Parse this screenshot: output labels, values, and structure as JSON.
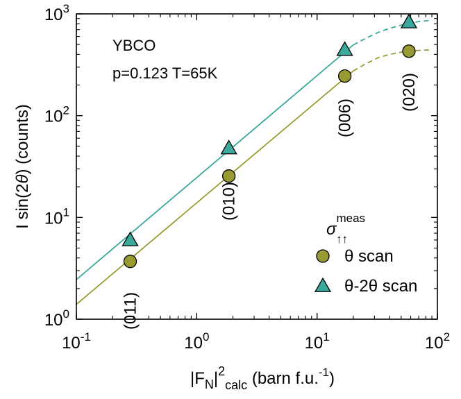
{
  "chart_data": {
    "type": "scatter",
    "title": "",
    "xlabel": {
      "base": "|F",
      "sub1": "N",
      "mid": "|",
      "sup": "2",
      "sub2": "calc",
      "tail": " (barn f.u.",
      "tailsup": "-1",
      "end": ")"
    },
    "ylabel": {
      "pre": "I sin(2",
      "theta": "θ",
      "post": ") (counts)"
    },
    "xscale": "log",
    "yscale": "log",
    "xlim": [
      0.1,
      100
    ],
    "ylim": [
      1,
      1000
    ],
    "grid": false,
    "x_ticks": [
      {
        "base": "10",
        "exp": "-1",
        "value": 0.1
      },
      {
        "base": "10",
        "exp": "0",
        "value": 1
      },
      {
        "base": "10",
        "exp": "1",
        "value": 10
      },
      {
        "base": "10",
        "exp": "2",
        "value": 100
      }
    ],
    "y_ticks": [
      {
        "base": "10",
        "exp": "0",
        "value": 1
      },
      {
        "base": "10",
        "exp": "1",
        "value": 10
      },
      {
        "base": "10",
        "exp": "2",
        "value": 100
      },
      {
        "base": "10",
        "exp": "3",
        "value": 1000
      }
    ],
    "annotations": {
      "sample": "YBCO",
      "conditions": "p=0.123 T=65K"
    },
    "legend": {
      "placement": "bottom-right",
      "title_base": "σ",
      "title_sup": "meas",
      "title_sub": "↑↑",
      "entries": [
        {
          "label": "θ scan",
          "marker": "circle",
          "color": "#9a9a33"
        },
        {
          "label": "θ-2θ scan",
          "marker": "triangle",
          "color": "#3aa89a"
        }
      ]
    },
    "reflections": [
      {
        "label": "(011)",
        "x": 0.28
      },
      {
        "label": "(010)",
        "x": 1.85
      },
      {
        "label": "(006)",
        "x": 17
      },
      {
        "label": "(020)",
        "x": 58
      }
    ],
    "series": [
      {
        "name": "θ scan",
        "marker": "circle",
        "color": "#9a9a33",
        "x": [
          0.28,
          1.85,
          17,
          58
        ],
        "y": [
          3.7,
          25.5,
          245,
          430
        ]
      },
      {
        "name": "θ-2θ scan",
        "marker": "triangle",
        "color": "#3aa89a",
        "x": [
          0.28,
          1.85,
          17,
          58
        ],
        "y": [
          6.0,
          48,
          445,
          830
        ]
      }
    ],
    "fit_lines": [
      {
        "color": "#9a9a33",
        "solid": {
          "x": [
            0.1,
            20
          ],
          "y": [
            1.4,
            275
          ]
        },
        "dashed": {
          "x": [
            20,
            25,
            32,
            40,
            50,
            60,
            70,
            85
          ],
          "y": [
            275,
            320,
            370,
            400,
            420,
            432,
            438,
            442
          ]
        }
      },
      {
        "color": "#3aa89a",
        "solid": {
          "x": [
            0.1,
            20
          ],
          "y": [
            2.45,
            495
          ]
        },
        "dashed": {
          "x": [
            20,
            25,
            32,
            40,
            50,
            60,
            70,
            85
          ],
          "y": [
            495,
            570,
            655,
            720,
            775,
            815,
            840,
            860
          ]
        }
      }
    ]
  }
}
